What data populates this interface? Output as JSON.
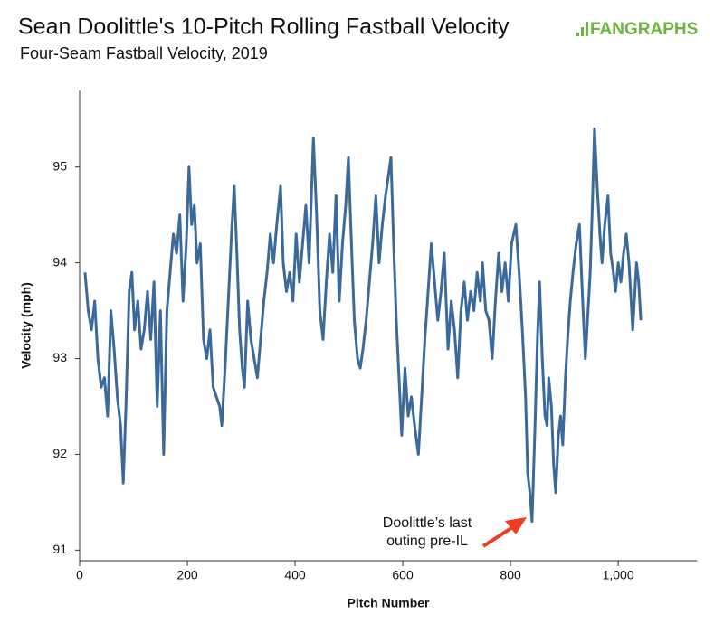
{
  "chart_data": {
    "type": "line",
    "title": "Sean Doolittle's 10-Pitch Rolling Fastball Velocity",
    "subtitle": "Four-Seam Fastball Velocity, 2019",
    "logo": "FANGRAPHS",
    "x_label": "Pitch Number",
    "y_label": "Velocity (mph)",
    "annotation": [
      "Doolittle’s last",
      "outing pre-IL"
    ],
    "color": "#3b6a9a",
    "x": [
      10,
      16,
      22,
      28,
      34,
      40,
      46,
      52,
      58,
      64,
      70,
      76,
      81,
      86,
      92,
      97,
      102,
      108,
      114,
      120,
      126,
      132,
      138,
      144,
      150,
      156,
      162,
      168,
      174,
      180,
      186,
      192,
      198,
      203,
      208,
      213,
      218,
      224,
      230,
      236,
      242,
      248,
      254,
      260,
      264,
      270,
      276,
      282,
      287,
      292,
      297,
      302,
      306,
      312,
      318,
      324,
      330,
      336,
      342,
      348,
      354,
      360,
      366,
      373,
      378,
      384,
      390,
      396,
      402,
      408,
      414,
      420,
      426,
      434,
      440,
      446,
      452,
      458,
      464,
      470,
      476,
      482,
      488,
      494,
      499,
      504,
      510,
      516,
      521,
      526,
      532,
      538,
      544,
      550,
      556,
      562,
      568,
      573,
      578,
      583,
      588,
      593,
      598,
      604,
      610,
      616,
      622,
      629,
      635,
      641,
      647,
      653,
      659,
      665,
      671,
      677,
      684,
      690,
      696,
      702,
      708,
      714,
      720,
      726,
      732,
      738,
      744,
      748,
      754,
      760,
      766,
      772,
      778,
      784,
      790,
      796,
      802,
      810,
      816,
      822,
      828,
      832,
      836,
      840,
      845,
      850,
      854,
      859,
      864,
      868,
      871,
      876,
      880,
      884,
      889,
      893,
      897,
      902,
      906,
      911,
      916,
      922,
      928,
      934,
      939,
      944,
      948,
      952,
      956,
      961,
      966,
      970,
      975,
      981,
      986,
      991,
      995,
      1000,
      1005,
      1010,
      1015,
      1020,
      1024,
      1027,
      1031,
      1034,
      1038,
      1042
    ],
    "values": [
      93.9,
      93.5,
      93.3,
      93.6,
      93.0,
      92.7,
      92.8,
      92.4,
      93.5,
      93.1,
      92.6,
      92.3,
      91.7,
      92.5,
      93.7,
      93.9,
      93.3,
      93.6,
      93.1,
      93.3,
      93.7,
      93.2,
      93.8,
      92.5,
      93.5,
      92.0,
      93.5,
      93.9,
      94.3,
      94.1,
      94.5,
      93.6,
      94.2,
      95.0,
      94.4,
      94.6,
      94.0,
      94.2,
      93.2,
      93.0,
      93.3,
      92.7,
      92.6,
      92.5,
      92.3,
      92.9,
      93.6,
      94.3,
      94.8,
      94.1,
      93.3,
      92.9,
      92.7,
      93.6,
      93.2,
      93.0,
      92.8,
      93.2,
      93.6,
      93.9,
      94.3,
      94.0,
      94.4,
      94.8,
      94.0,
      93.7,
      93.9,
      93.6,
      94.3,
      93.8,
      94.2,
      94.6,
      94.0,
      95.3,
      94.5,
      93.5,
      93.2,
      93.8,
      94.3,
      93.9,
      94.7,
      93.6,
      94.2,
      94.6,
      95.1,
      94.3,
      93.4,
      93.0,
      92.9,
      93.1,
      93.4,
      93.8,
      94.2,
      94.7,
      94.0,
      94.4,
      94.7,
      94.9,
      95.1,
      94.2,
      93.4,
      92.8,
      92.2,
      92.9,
      92.4,
      92.6,
      92.3,
      92.0,
      92.6,
      93.2,
      93.7,
      94.2,
      93.8,
      93.4,
      93.7,
      94.1,
      93.1,
      93.6,
      93.3,
      92.8,
      93.5,
      93.8,
      93.4,
      93.7,
      93.5,
      93.9,
      93.6,
      94.0,
      93.5,
      93.4,
      93.0,
      93.6,
      94.1,
      93.7,
      94.0,
      93.6,
      94.2,
      94.4,
      93.9,
      93.3,
      92.6,
      91.8,
      91.6,
      91.3,
      92.2,
      93.2,
      93.8,
      93.0,
      92.4,
      92.3,
      92.8,
      92.5,
      91.9,
      91.6,
      92.2,
      92.4,
      92.1,
      92.8,
      93.2,
      93.6,
      93.9,
      94.2,
      94.4,
      93.6,
      93.0,
      93.5,
      93.9,
      94.6,
      95.4,
      94.8,
      94.3,
      94.0,
      94.4,
      94.7,
      94.1,
      93.9,
      93.7,
      94.0,
      93.8,
      94.1,
      94.3,
      94.0,
      93.6,
      93.3,
      93.7,
      94.0,
      93.8,
      93.4
    ],
    "xlim": [
      0,
      1146
    ],
    "xticks": [
      0,
      200,
      400,
      600,
      800,
      {
        "value": 1000,
        "label": "1,000"
      }
    ],
    "ylim": [
      90.89,
      95.8
    ],
    "yticks": [
      91,
      92,
      93,
      94,
      95
    ],
    "grid": false
  }
}
